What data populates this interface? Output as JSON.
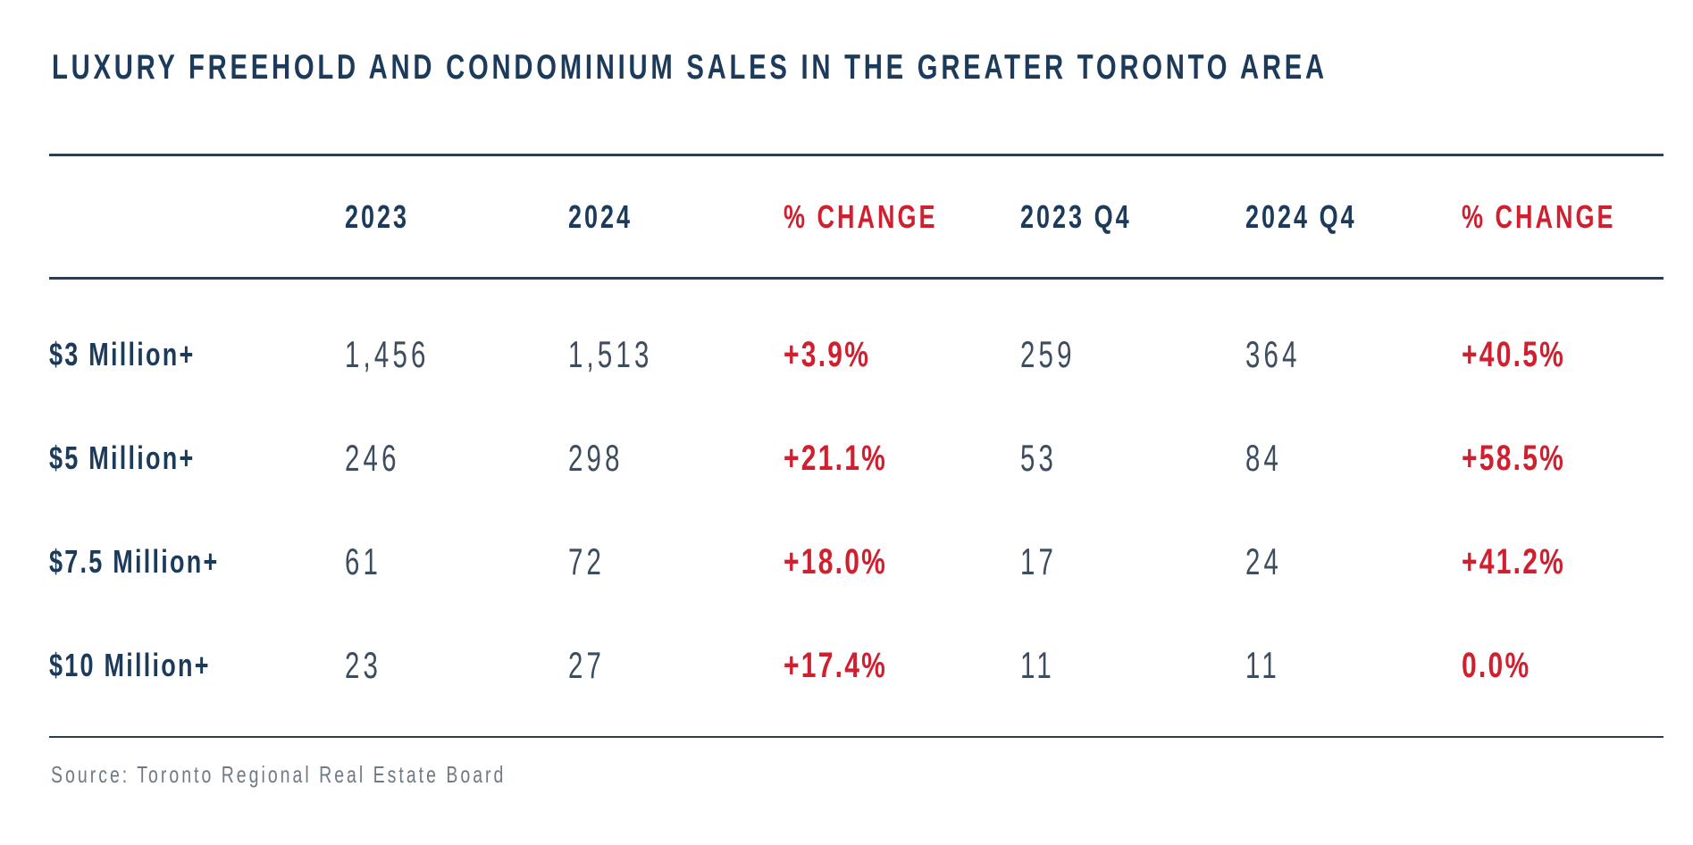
{
  "page": {
    "title": "LUXURY FREEHOLD AND CONDOMINIUM SALES IN THE GREATER TORONTO AREA",
    "source_note": "Source: Toronto Regional Real Estate Board"
  },
  "colors": {
    "navy": "#1C3A5A",
    "red": "#D0202F",
    "number_slate": "#3D4C5E",
    "source_gray": "#6F7A85",
    "rule_navy": "#2C3E52",
    "background": "#FFFFFF"
  },
  "chart_data": {
    "type": "table",
    "title": "LUXURY FREEHOLD AND CONDOMINIUM SALES IN THE GREATER TORONTO AREA",
    "columns": [
      "",
      "2023",
      "2024",
      "% CHANGE",
      "2023 Q4",
      "2024 Q4",
      "% CHANGE"
    ],
    "rows": [
      {
        "label": "$3 Million+",
        "y2023": "1,456",
        "y2024": "1,513",
        "yoy_change": "+3.9%",
        "q4_2023": "259",
        "q4_2024": "364",
        "q4_change": "+40.5%"
      },
      {
        "label": "$5 Million+",
        "y2023": "246",
        "y2024": "298",
        "yoy_change": "+21.1%",
        "q4_2023": "53",
        "q4_2024": "84",
        "q4_change": "+58.5%"
      },
      {
        "label": "$7.5 Million+",
        "y2023": "61",
        "y2024": "72",
        "yoy_change": "+18.0%",
        "q4_2023": "17",
        "q4_2024": "24",
        "q4_change": "+41.2%"
      },
      {
        "label": "$10 Million+",
        "y2023": "23",
        "y2024": "27",
        "yoy_change": "+17.4%",
        "q4_2023": "11",
        "q4_2024": "11",
        "q4_change": "0.0%"
      }
    ],
    "source": "Source: Toronto Regional Real Estate Board"
  }
}
